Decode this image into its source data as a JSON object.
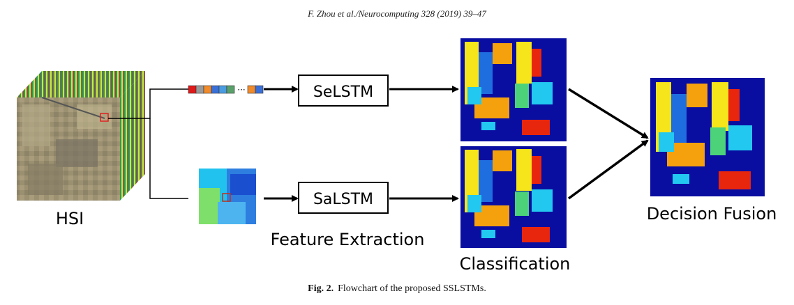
{
  "header": {
    "running_head": "F. Zhou et al./Neurocomputing 328 (2019) 39–47"
  },
  "figure": {
    "hsi_label": "HSI",
    "selstm_label": "SeLSTM",
    "salstm_label": "SaLSTM",
    "feature_extraction_label": "Feature Extraction",
    "classification_label": "Classification",
    "decision_fusion_label": "Decision Fusion",
    "spectral_vector_colors": [
      "#e11818",
      "#9a9a9a",
      "#f08a2a",
      "#3a6fd8",
      "#4b9be0",
      "#5aa06a",
      "#f08a2a",
      "#3a6fd8"
    ],
    "map_colors": {
      "background": "#0a0ea0",
      "yellow": "#f6e51a",
      "orange": "#f5a10e",
      "red": "#e8260e",
      "cyan": "#22c8ef",
      "blue": "#1f6ee0",
      "green": "#4cd37a"
    }
  },
  "caption": {
    "label": "Fig. 2.",
    "text": "Flowchart of the proposed SSLSTMs."
  }
}
